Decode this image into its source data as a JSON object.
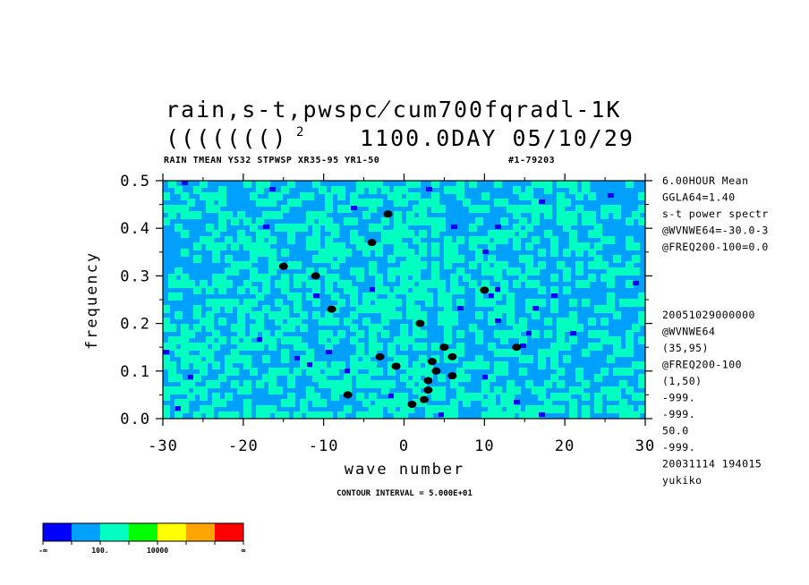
{
  "chart_data": {
    "type": "heatmap",
    "title": "rain,s-t,pwspc̸cum700fqradl-1K",
    "title_line2_left": "((((((()",
    "title_line2_sup": "2",
    "title_line2_right": "1100.0DAY 05/10/29",
    "subtitle_left": "RAIN TMEAN YS32 STPWSP XR35-95 YR1-50",
    "subtitle_right": "#1-79203",
    "xlabel": "wave number",
    "ylabel": "frequency",
    "xlim": [
      -30,
      30
    ],
    "ylim": [
      0.0,
      0.5
    ],
    "x_ticks": [
      -30,
      -20,
      -10,
      0,
      10,
      20,
      30
    ],
    "x_tick_labels": [
      "-30",
      "-20",
      "-10",
      "0",
      "10",
      "20",
      "30"
    ],
    "y_ticks": [
      0.0,
      0.1,
      0.2,
      0.3,
      0.4,
      0.5
    ],
    "y_tick_labels": [
      "0.0",
      "0.1",
      "0.2",
      "0.3",
      "0.4",
      "0.5"
    ],
    "contour_interval_label": "CONTOUR INTERVAL = 5.000E+01",
    "colorbar": {
      "colors": [
        "#0000ff",
        "#00a0ff",
        "#00ffc0",
        "#00ff00",
        "#ffff00",
        "#ffa500",
        "#ff0000"
      ],
      "labels": [
        "-∞",
        "100.",
        "10000",
        "∞"
      ]
    },
    "side_info": [
      "6.00HOUR Mean",
      "GGLA64=1.40",
      "s-t power spectr",
      "@WVNWE64=-30.0-3",
      "@FREQ200-100=0.0"
    ],
    "side_info2": [
      "20051029000000",
      "@WVNWE64",
      "(35,95)",
      "@FREQ200-100",
      "(1,50)",
      "-999.",
      "-999.",
      "50.0",
      "-999.",
      "20031114 194015",
      "yukiko"
    ],
    "field_colors": {
      "low": "#0000ff",
      "background": "#00a0ff",
      "mid": "#00ffc0",
      "high": "#000000"
    }
  }
}
